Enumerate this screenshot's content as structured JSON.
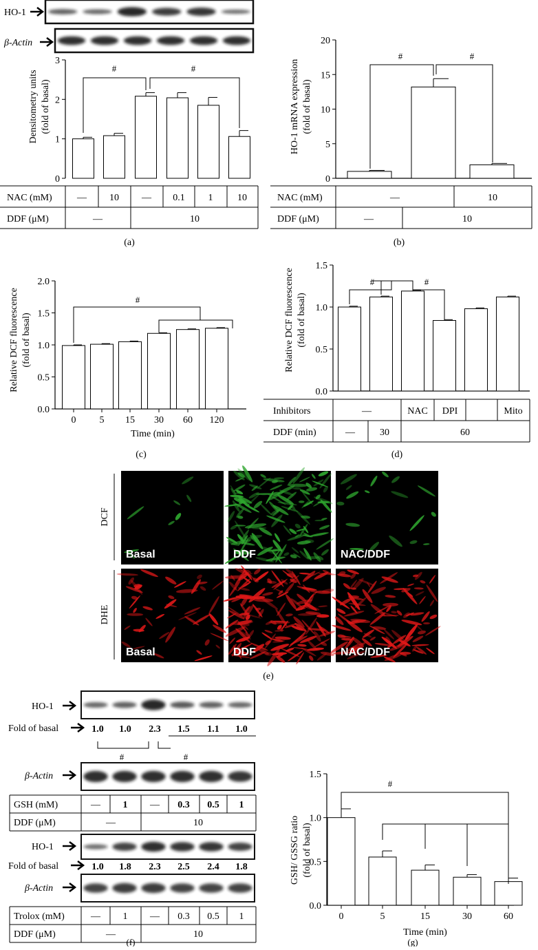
{
  "colors": {
    "dcf_fluor": "#2ea52e",
    "dhe_fluor": "#e01818",
    "micro_bg": "#000000"
  },
  "panel_a": {
    "label": "(a)",
    "blots": [
      "HO-1",
      "β-Actin"
    ],
    "chart_data": {
      "type": "bar",
      "ylabel": "Densitometry units\n(fold of basal)",
      "ylim": [
        0,
        3
      ],
      "yticks": [
        "0",
        "1",
        "2",
        "3"
      ],
      "values": [
        1.0,
        1.08,
        2.08,
        2.04,
        1.85,
        1.06
      ],
      "errors": [
        0.04,
        0.06,
        0.09,
        0.13,
        0.2,
        0.15
      ],
      "significance": [
        "#",
        "#"
      ]
    },
    "table": {
      "row1": {
        "label": "NAC (mM)",
        "cells": [
          "—",
          "10",
          "—",
          "0.1",
          "1",
          "10"
        ]
      },
      "row2": {
        "label": "DDF (μM)",
        "cells": [
          "—",
          "10"
        ]
      }
    }
  },
  "panel_b": {
    "label": "(b)",
    "chart_data": {
      "type": "bar",
      "ylabel": "HO-1 mRNA expression\n(fold of basal)",
      "ylim": [
        0,
        20
      ],
      "yticks": [
        "0",
        "5",
        "10",
        "15",
        "20"
      ],
      "values": [
        1.0,
        13.2,
        1.95
      ],
      "errors": [
        0.15,
        1.2,
        0.2
      ],
      "significance": [
        "#",
        "#"
      ]
    },
    "table": {
      "row1": {
        "label": "NAC (mM)",
        "cells": [
          "—",
          "10"
        ]
      },
      "row2": {
        "label": "DDF (μM)",
        "cells": [
          "—",
          "10"
        ]
      }
    }
  },
  "panel_c": {
    "label": "(c)",
    "chart_data": {
      "type": "bar",
      "ylabel": "Relative DCF fluorescence\n(fold of basal)",
      "xlabel": "Time (min)",
      "categories": [
        "0",
        "5",
        "15",
        "30",
        "60",
        "120"
      ],
      "ylim": [
        0,
        2.0
      ],
      "yticks": [
        "0.0",
        "0.5",
        "1.0",
        "1.5",
        "2.0"
      ],
      "values": [
        0.99,
        1.01,
        1.05,
        1.18,
        1.24,
        1.26
      ],
      "errors": [
        0.01,
        0.01,
        0.01,
        0.01,
        0.01,
        0.01
      ],
      "significance": [
        "#"
      ]
    }
  },
  "panel_d": {
    "label": "(d)",
    "chart_data": {
      "type": "bar",
      "ylabel": "Relative DCF fluorescence\n(fold of basal)",
      "ylim": [
        0,
        1.5
      ],
      "yticks": [
        "0.0",
        "0.5",
        "1.0",
        "1.5"
      ],
      "values": [
        1.0,
        1.12,
        1.19,
        0.84,
        0.98,
        1.12
      ],
      "errors": [
        0.01,
        0.01,
        0.01,
        0.01,
        0.01,
        0.01
      ],
      "significance": [
        "#",
        "#"
      ]
    },
    "table": {
      "row1": {
        "label": "Inhibitors",
        "cells": [
          "—",
          "NAC",
          "DPI",
          "Mito"
        ]
      },
      "row2": {
        "label": "DDF (min)",
        "cells": [
          "—",
          "30",
          "60"
        ]
      }
    }
  },
  "panel_e": {
    "label": "(e)",
    "rows": [
      "DCF",
      "DHE"
    ],
    "tiles": [
      "Basal",
      "DDF",
      "NAC/DDF"
    ]
  },
  "panel_f": {
    "label": "(f)",
    "blot_labels": {
      "ho1": "HO-1",
      "actin": "β-Actin",
      "fold": "Fold of basal"
    },
    "fold_gsh": [
      "1.0",
      "1.0",
      "2.3",
      "1.5",
      "1.1",
      "1.0"
    ],
    "fold_trolox": [
      "1.0",
      "1.8",
      "2.3",
      "2.5",
      "2.4",
      "1.8"
    ],
    "significance": [
      "#",
      "#"
    ],
    "table_gsh": {
      "row1": {
        "label": "GSH (mM)",
        "cells": [
          "—",
          "1",
          "—",
          "0.3",
          "0.5",
          "1"
        ]
      },
      "row2": {
        "label": "DDF (μM)",
        "cells": [
          "—",
          "10"
        ]
      }
    },
    "table_trolox": {
      "row1": {
        "label": "Trolox (mM)",
        "cells": [
          "—",
          "1",
          "—",
          "0.3",
          "0.5",
          "1"
        ]
      },
      "row2": {
        "label": "DDF (μM)",
        "cells": [
          "—",
          "10"
        ]
      }
    }
  },
  "panel_g": {
    "label": "(g)",
    "chart_data": {
      "type": "bar",
      "ylabel": "GSH/ GSSG ratio\n(fold of basal)",
      "xlabel": "Time (min)",
      "categories": [
        "0",
        "5",
        "15",
        "30",
        "60"
      ],
      "ylim": [
        0,
        1.5
      ],
      "yticks": [
        "0.0",
        "0.5",
        "1.0",
        "1.5"
      ],
      "values": [
        1.0,
        0.55,
        0.4,
        0.32,
        0.27
      ],
      "errors": [
        0.1,
        0.07,
        0.06,
        0.03,
        0.04
      ],
      "significance": [
        "#"
      ]
    }
  }
}
